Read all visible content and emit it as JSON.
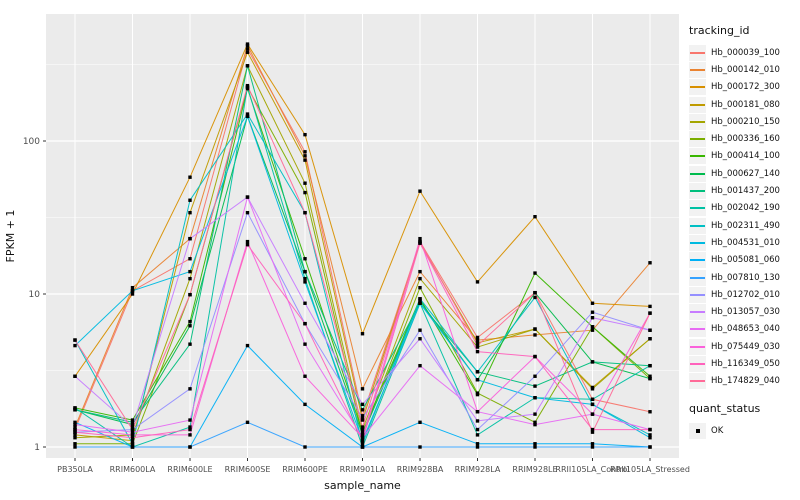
{
  "figure": {
    "background": "#FFFFFF",
    "panel_bg": "#EBEBEB",
    "grid_color": "#FFFFFF",
    "tick_text_color": "#4D4D4D",
    "axis_title_color": "#111111",
    "point_color": "#000000",
    "legend_key_bg": "#F2F2F2"
  },
  "legend": {
    "tracking_title": "tracking_id",
    "quant_title": "quant_status",
    "quant_items": [
      {
        "label": "OK",
        "shape": "square",
        "color": "#000000"
      }
    ]
  },
  "chart_data": {
    "type": "line",
    "title": "",
    "xlabel": "sample_name",
    "ylabel": "FPKM + 1",
    "y_scale": "log10",
    "y_ticks": [
      1,
      10,
      100
    ],
    "ylim": [
      1,
      600
    ],
    "grid": "on",
    "legend_position": "right",
    "point_shape": "black-square (quant_status OK)",
    "categories": [
      "PB350LA",
      "RRIM600LA",
      "RRIM600LE",
      "RRIM600SE",
      "RRIM600PE",
      "RRIM901LA",
      "RRIM928BA",
      "RRIM928LA",
      "RRIM928LE",
      "RRII105LA_Control",
      "RRII105LA_Stressed"
    ],
    "series": [
      {
        "name": "Hb_000039_100",
        "color": "#F8766D",
        "values": [
          1.3,
          10.5,
          17,
          400,
          85,
          1.6,
          22,
          5.2,
          10.2,
          2.05,
          1.7
        ]
      },
      {
        "name": "Hb_000142_010",
        "color": "#EA8331",
        "values": [
          1.35,
          11,
          23,
          420,
          80,
          2.4,
          14,
          5.0,
          5.4,
          5.8,
          16
        ]
      },
      {
        "name": "Hb_000172_300",
        "color": "#D89000",
        "values": [
          2.9,
          10,
          58,
          430,
          110,
          5.5,
          47,
          12,
          32,
          8.7,
          8.3
        ]
      },
      {
        "name": "Hb_000181_080",
        "color": "#C09B00",
        "values": [
          1.2,
          1.1,
          34,
          380,
          75,
          1.5,
          21.5,
          4.8,
          5.9,
          2.45,
          5.1
        ]
      },
      {
        "name": "Hb_000210_150",
        "color": "#A3A500",
        "values": [
          1.15,
          1.2,
          12.6,
          310,
          53,
          1.3,
          12.6,
          4.5,
          5.9,
          2.4,
          5.1
        ]
      },
      {
        "name": "Hb_000336_160",
        "color": "#7CAE00",
        "values": [
          1.05,
          1.05,
          9.9,
          225,
          46,
          1.2,
          11,
          2.25,
          1.45,
          6.1,
          2.8
        ]
      },
      {
        "name": "Hb_000414_100",
        "color": "#39B600",
        "values": [
          1.8,
          1.5,
          6.6,
          220,
          17,
          1.25,
          9.3,
          2.2,
          13.7,
          6.1,
          2.9
        ]
      },
      {
        "name": "Hb_000627_140",
        "color": "#00BB4E",
        "values": [
          1.75,
          1.4,
          6.2,
          145,
          14,
          1.2,
          9.0,
          2.75,
          10.2,
          3.6,
          2.8
        ]
      },
      {
        "name": "Hb_001437_200",
        "color": "#00BF7D",
        "values": [
          1.75,
          1.45,
          4.7,
          310,
          14,
          1.75,
          8.7,
          3.1,
          2.5,
          3.6,
          3.4
        ]
      },
      {
        "name": "Hb_002042_190",
        "color": "#00C1A3",
        "values": [
          1.8,
          1.0,
          1.35,
          225,
          12.6,
          1.0,
          8.7,
          1.2,
          2.1,
          2.05,
          3.4
        ]
      },
      {
        "name": "Hb_002311_490",
        "color": "#00BFC4",
        "values": [
          5.0,
          1.05,
          41,
          150,
          34,
          1.05,
          9.3,
          3.1,
          9.5,
          1.9,
          1.2
        ]
      },
      {
        "name": "Hb_004531_010",
        "color": "#00BAE0",
        "values": [
          4.6,
          10.5,
          14,
          145,
          12,
          1.1,
          8.7,
          2.75,
          2.1,
          1.9,
          1.15
        ]
      },
      {
        "name": "Hb_005081_060",
        "color": "#00B0F6",
        "values": [
          1.45,
          1.0,
          1.0,
          4.6,
          1.9,
          1.0,
          1.45,
          1.05,
          1.05,
          1.05,
          1.0
        ]
      },
      {
        "name": "Hb_007810_130",
        "color": "#35A2FF",
        "values": [
          1.0,
          1.0,
          1.0,
          1.45,
          1.0,
          1.0,
          1.0,
          1.0,
          1.0,
          1.0,
          1.0
        ]
      },
      {
        "name": "Hb_012702_010",
        "color": "#9590FF",
        "values": [
          1.25,
          1.3,
          2.4,
          34,
          6.4,
          1.55,
          5.8,
          1.3,
          2.9,
          7.6,
          5.8
        ]
      },
      {
        "name": "Hb_013057_030",
        "color": "#C77CFF",
        "values": [
          2.9,
          1.35,
          23,
          43,
          8.7,
          1.9,
          5.1,
          1.48,
          1.64,
          7.0,
          5.8
        ]
      },
      {
        "name": "Hb_048653_040",
        "color": "#E76BF3",
        "values": [
          1.4,
          1.25,
          1.5,
          43,
          4.7,
          1.15,
          3.4,
          1.7,
          1.4,
          1.64,
          1.3
        ]
      },
      {
        "name": "Hb_075449_030",
        "color": "#FA62DB",
        "values": [
          1.3,
          1.2,
          1.2,
          22,
          2.9,
          1.15,
          23,
          1.7,
          3.9,
          1.64,
          7.5
        ]
      },
      {
        "name": "Hb_116349_050",
        "color": "#FF62BC",
        "values": [
          1.25,
          1.15,
          1.3,
          21,
          6.4,
          1.1,
          21.5,
          4.2,
          3.9,
          1.3,
          1.3
        ]
      },
      {
        "name": "Hb_174829_040",
        "color": "#FF6A98",
        "values": [
          5.0,
          1.3,
          9.9,
          230,
          34,
          1.35,
          22,
          4.6,
          10.2,
          1.25,
          7.5
        ]
      }
    ]
  }
}
